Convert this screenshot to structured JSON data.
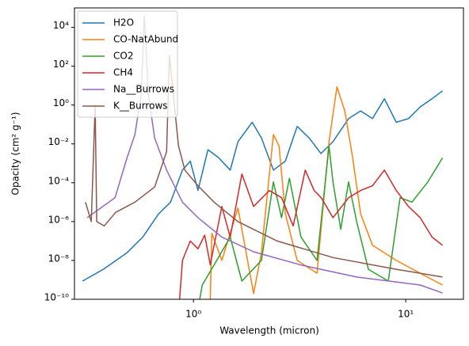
{
  "chart_data": {
    "type": "line",
    "xlabel": "Wavelength (micron)",
    "ylabel": "Opacity (cm² g⁻¹)",
    "xscale": "log",
    "yscale": "log",
    "xlim": [
      0.275,
      18.7
    ],
    "ylim": [
      1e-10,
      100000.0
    ],
    "xticks": [
      {
        "value": 1,
        "label": "10⁰"
      },
      {
        "value": 10,
        "label": "10¹"
      }
    ],
    "yticks": [
      {
        "value": 1e-10,
        "label": "10⁻¹⁰"
      },
      {
        "value": 1e-08,
        "label": "10⁻⁸"
      },
      {
        "value": 1e-06,
        "label": "10⁻⁶"
      },
      {
        "value": 0.0001,
        "label": "10⁻⁴"
      },
      {
        "value": 0.01,
        "label": "10⁻²"
      },
      {
        "value": 1,
        "label": "10⁰"
      },
      {
        "value": 100,
        "label": "10²"
      },
      {
        "value": 10000,
        "label": "10⁴"
      }
    ],
    "legend": "upper left",
    "series": [
      {
        "name": "H2O",
        "color": "#1f77b4",
        "x": [
          0.3,
          0.376,
          0.486,
          0.577,
          0.685,
          0.78,
          0.887,
          0.966,
          1.05,
          1.17,
          1.31,
          1.49,
          1.62,
          1.89,
          2.09,
          2.38,
          2.71,
          3.08,
          3.51,
          3.99,
          4.54,
          5.38,
          6.13,
          6.97,
          7.93,
          9.02,
          10.3,
          11.7,
          13.3,
          14.9
        ],
        "values": [
          8.7e-10,
          3.5e-09,
          2.5e-08,
          1.6e-07,
          2.5e-06,
          1e-05,
          0.00045,
          0.0013,
          4e-05,
          0.005,
          0.002,
          0.00045,
          0.013,
          0.13,
          0.02,
          0.00045,
          0.0013,
          0.08,
          0.02,
          0.0032,
          0.013,
          0.2,
          0.5,
          0.2,
          2.1,
          0.13,
          0.2,
          0.8,
          2.1,
          5.4
        ]
      },
      {
        "name": "CO-NatAbund",
        "color": "#ff7f0e",
        "x": [
          1.2,
          1.22,
          1.36,
          1.62,
          1.92,
          2.09,
          2.38,
          2.53,
          2.71,
          3.08,
          3.82,
          4.35,
          4.74,
          5.16,
          5.62,
          6.13,
          6.97,
          9.02,
          11.7,
          14.9
        ],
        "values": [
          1e-10,
          2.5e-07,
          1e-08,
          5e-06,
          2e-10,
          2.5e-08,
          0.03,
          0.008,
          2.5e-06,
          1e-08,
          2.2e-09,
          0.013,
          8.7,
          0.5,
          0.002,
          2.5e-06,
          6e-08,
          1e-08,
          2.2e-09,
          5.4e-10
        ]
      },
      {
        "name": "CO2",
        "color": "#2ca02c",
        "x": [
          1.07,
          1.1,
          1.25,
          1.49,
          1.69,
          2.09,
          2.38,
          2.6,
          2.83,
          3.21,
          3.82,
          4.35,
          4.54,
          4.94,
          5.38,
          5.87,
          6.67,
          8.27,
          9.4,
          10.7,
          12.7,
          14.9
        ],
        "values": [
          1e-10,
          5.4e-10,
          5.8e-09,
          1.6e-07,
          8.7e-10,
          1e-08,
          0.00011,
          1.6e-06,
          0.00017,
          1.6e-07,
          1e-08,
          0.0076,
          0.00011,
          4e-07,
          0.00011,
          1e-06,
          3.5e-09,
          8.7e-10,
          1.7e-05,
          1e-05,
          0.00011,
          0.0019
        ]
      },
      {
        "name": "CH4",
        "color": "#d62728",
        "x": [
          0.86,
          0.887,
          0.966,
          1.05,
          1.13,
          1.2,
          1.36,
          1.49,
          1.69,
          1.92,
          2.28,
          2.6,
          2.95,
          3.36,
          3.7,
          4.0,
          4.54,
          5.38,
          6.13,
          6.97,
          7.93,
          9.02,
          10.3,
          11.7,
          13.3,
          14.9
        ],
        "values": [
          1e-10,
          1e-08,
          1e-07,
          4e-08,
          2e-07,
          6e-09,
          6e-06,
          1.6e-07,
          0.00028,
          6e-06,
          4e-05,
          1.7e-05,
          6e-07,
          0.00045,
          4e-05,
          1.7e-05,
          1.6e-06,
          1.7e-05,
          4e-05,
          7e-05,
          0.00045,
          4e-05,
          6e-06,
          1.6e-06,
          1.6e-07,
          6e-08
        ]
      },
      {
        "name": "Na__Burrows",
        "color": "#9467bd",
        "x": [
          0.316,
          0.427,
          0.486,
          0.53,
          0.567,
          0.587,
          0.613,
          0.656,
          0.747,
          0.887,
          1.05,
          1.36,
          1.92,
          3.21,
          5.87,
          11.7,
          14.9
        ],
        "values": [
          1.6e-06,
          1.7e-05,
          0.0019,
          0.03,
          3.4,
          40000,
          3.4,
          0.02,
          0.00045,
          1e-05,
          1.6e-06,
          1.6e-07,
          2.8e-08,
          5.8e-09,
          1.4e-09,
          5.4e-10,
          2.1e-10
        ]
      },
      {
        "name": "K__Burrows",
        "color": "#8c564b",
        "x": [
          0.31,
          0.33,
          0.344,
          0.35,
          0.38,
          0.43,
          0.53,
          0.656,
          0.747,
          0.77,
          0.85,
          0.91,
          1.05,
          1.25,
          1.62,
          2.48,
          4.54,
          9.02,
          14.9
        ],
        "values": [
          1e-05,
          1e-06,
          1,
          1e-06,
          6e-07,
          3e-06,
          1e-05,
          6e-05,
          0.004,
          370,
          0.008,
          0.00045,
          7e-05,
          1e-05,
          1e-06,
          1e-07,
          1.4e-08,
          3.5e-09,
          1.4e-09
        ]
      }
    ]
  }
}
